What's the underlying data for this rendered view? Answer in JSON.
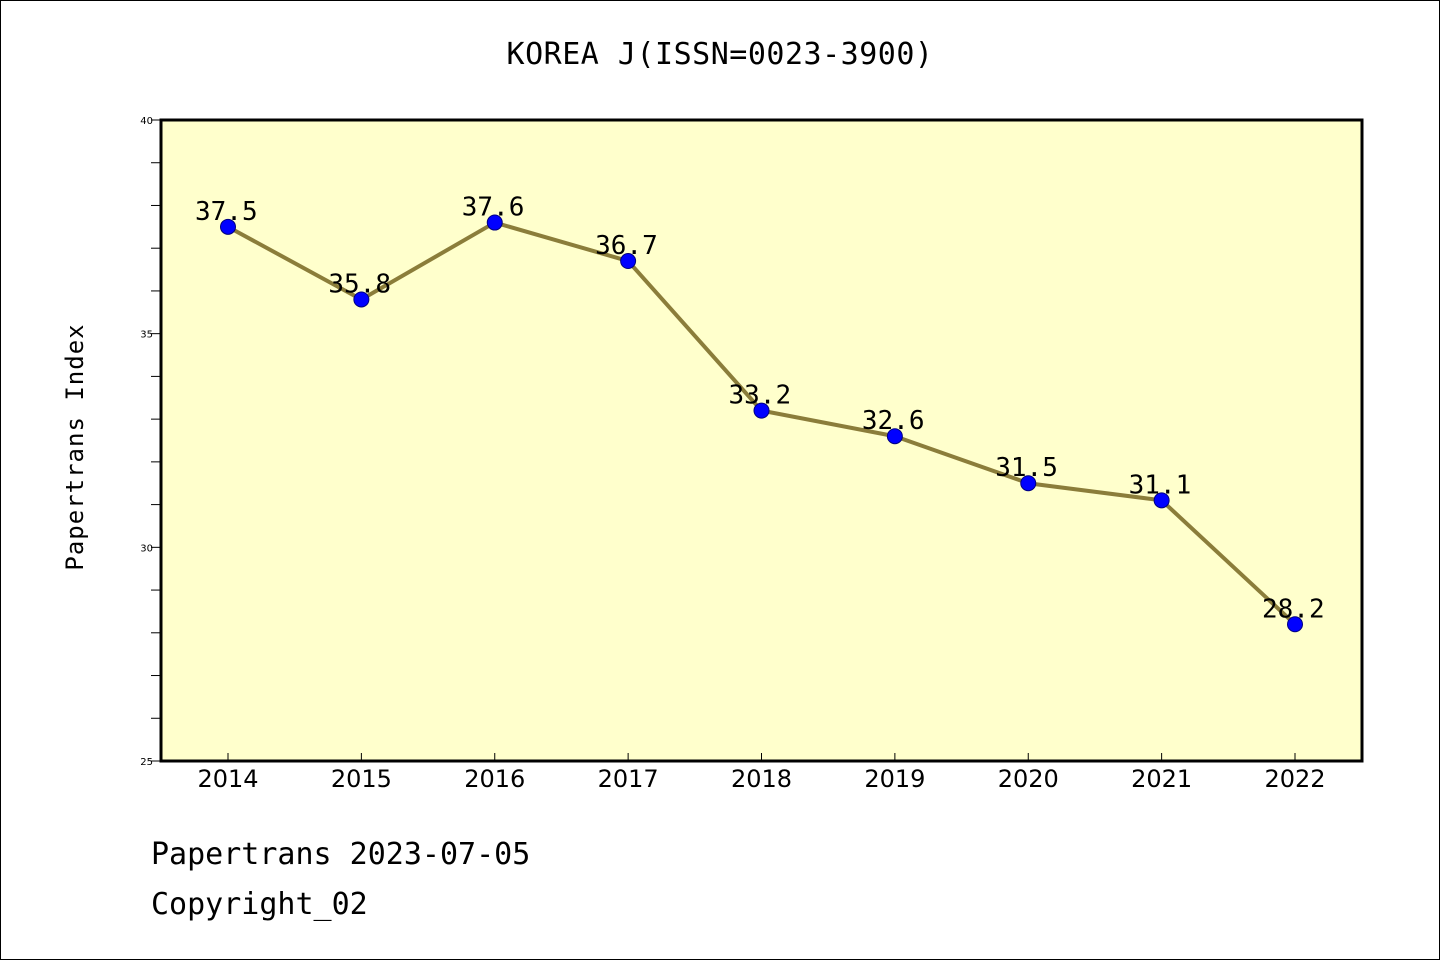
{
  "chart_data": {
    "type": "line",
    "title": "KOREA J(ISSN=0023-3900)",
    "xlabel": "",
    "ylabel": "Papertrans Index",
    "categories": [
      "2014",
      "2015",
      "2016",
      "2017",
      "2018",
      "2019",
      "2020",
      "2021",
      "2022"
    ],
    "values": [
      37.5,
      35.8,
      37.6,
      36.7,
      33.2,
      32.6,
      31.5,
      31.1,
      28.2
    ],
    "data_labels": [
      "37.5",
      "35.8",
      "37.6",
      "36.7",
      "33.2",
      "32.6",
      "31.5",
      "31.1",
      "28.2"
    ],
    "ylim": [
      25,
      40
    ],
    "yticks": [
      "25",
      "30",
      "35",
      "40"
    ],
    "y_minor_step": 1,
    "grid": false,
    "legend": "none",
    "colors": {
      "plot_background": "#ffffcc",
      "line": "#8b7d3a",
      "marker": "#0000ff",
      "marker_edge": "#000080"
    }
  },
  "footer": {
    "date_line": "Papertrans 2023-07-05",
    "copyright_line": "Copyright_02"
  }
}
